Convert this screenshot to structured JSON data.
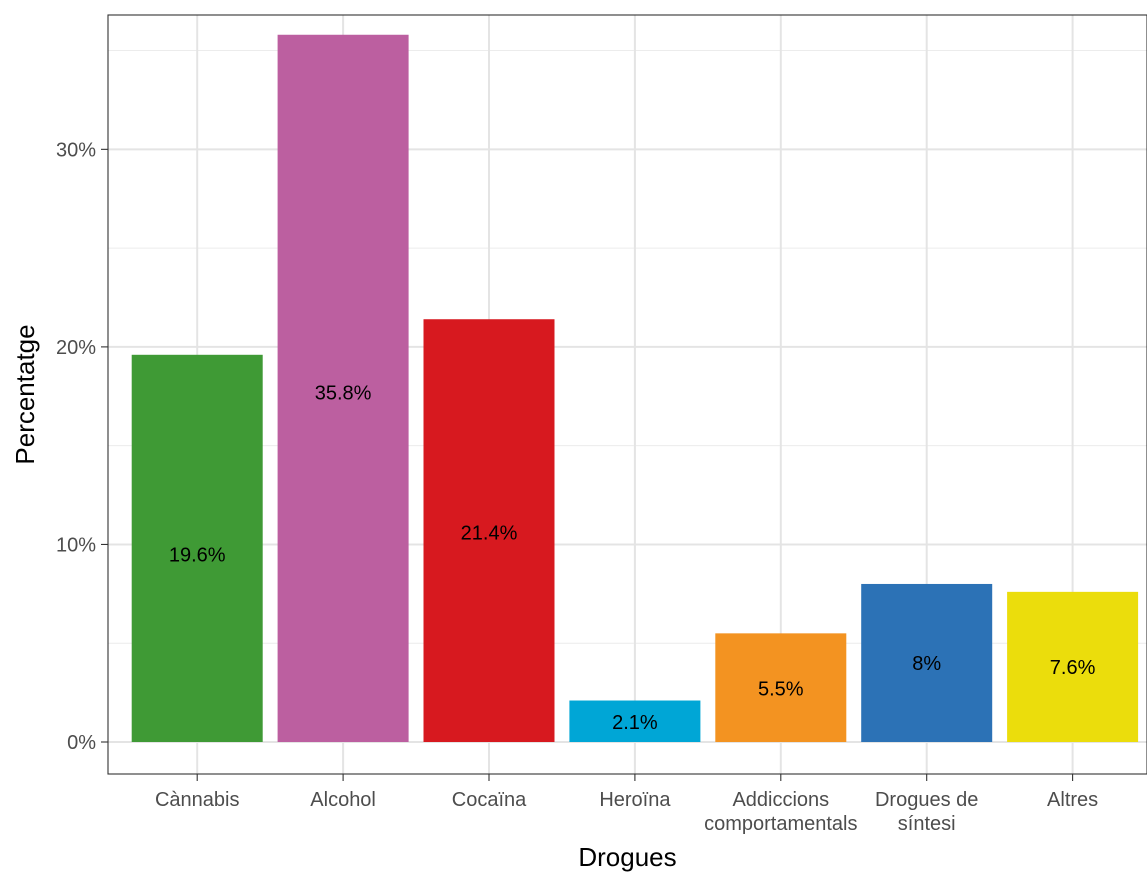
{
  "chart_data": {
    "type": "bar",
    "title": "",
    "xlabel": "Drogues",
    "ylabel": "Percentatge",
    "ylim": [
      0,
      36.8
    ],
    "y_ticks": [
      0,
      10,
      20,
      30
    ],
    "y_tick_labels": [
      "0%",
      "10%",
      "20%",
      "30%"
    ],
    "y_format": "percent",
    "grid": true,
    "legend": "none",
    "categories": [
      [
        "Cànnabis"
      ],
      [
        "Alcohol"
      ],
      [
        "Cocaïna"
      ],
      [
        "Heroïna"
      ],
      [
        "Addiccions",
        "comportamentals"
      ],
      [
        "Drogues de",
        "síntesi"
      ],
      [
        "Altres"
      ]
    ],
    "values": [
      19.6,
      35.8,
      21.4,
      2.1,
      5.5,
      8.0,
      7.6
    ],
    "data_labels": [
      "19.6%",
      "35.8%",
      "21.4%",
      "2.1%",
      "5.5%",
      "8%",
      "7.6%"
    ],
    "label_y_values": [
      9.5,
      17.7,
      10.6,
      1.0,
      2.7,
      4.0,
      3.8
    ],
    "colors": [
      "#3F9A35",
      "#BC5FA0",
      "#D7191F",
      "#00A6D6",
      "#F39321",
      "#2C72B6",
      "#EBDD0C"
    ]
  }
}
